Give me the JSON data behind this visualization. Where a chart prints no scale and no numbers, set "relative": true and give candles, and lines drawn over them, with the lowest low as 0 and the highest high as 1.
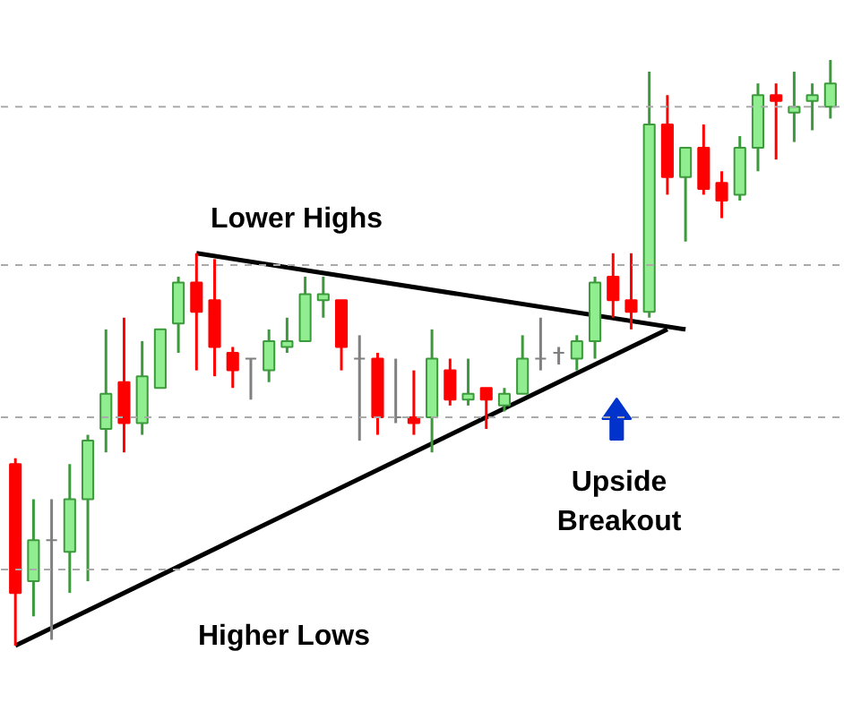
{
  "chart_data": {
    "type": "candlestick",
    "relative": true,
    "categories": [
      null,
      null,
      null,
      null,
      null,
      null,
      null,
      null,
      null,
      null,
      null,
      null,
      null,
      null,
      null,
      null,
      null,
      null,
      null,
      null,
      null,
      null,
      null,
      null,
      null,
      null,
      null,
      null,
      null,
      null,
      null,
      null,
      null,
      null,
      null,
      null,
      null,
      null,
      null,
      null,
      null,
      null,
      null,
      null,
      null,
      null
    ],
    "ohlc": [
      [
        0.31,
        0.32,
        0,
        0.09
      ],
      [
        0.11,
        0.25,
        0.05,
        0.18
      ],
      [
        0.18,
        0.25,
        0.01,
        0.18
      ],
      [
        0.16,
        0.31,
        0.09,
        0.25
      ],
      [
        0.25,
        0.36,
        0.11,
        0.35
      ],
      [
        0.37,
        0.54,
        0.33,
        0.43
      ],
      [
        0.45,
        0.56,
        0.33,
        0.38
      ],
      [
        0.38,
        0.52,
        0.36,
        0.46
      ],
      [
        0.44,
        0.54,
        0.44,
        0.54
      ],
      [
        0.55,
        0.63,
        0.5,
        0.62
      ],
      [
        0.62,
        0.67,
        0.47,
        0.57
      ],
      [
        0.59,
        0.66,
        0.46,
        0.51
      ],
      [
        0.5,
        0.51,
        0.44,
        0.47
      ],
      [
        0.49,
        0.49,
        0.42,
        0.49
      ],
      [
        0.47,
        0.54,
        0.45,
        0.52
      ],
      [
        0.51,
        0.56,
        0.5,
        0.52
      ],
      [
        0.52,
        0.63,
        0.52,
        0.6
      ],
      [
        0.59,
        0.63,
        0.56,
        0.6
      ],
      [
        0.59,
        0.59,
        0.47,
        0.51
      ],
      [
        0.49,
        0.53,
        0.35,
        0.49
      ],
      [
        0.49,
        0.5,
        0.36,
        0.39
      ],
      [
        0.39,
        0.49,
        0.38,
        0.39
      ],
      [
        0.39,
        0.47,
        0.36,
        0.38
      ],
      [
        0.39,
        0.54,
        0.33,
        0.49
      ],
      [
        0.47,
        0.49,
        0.41,
        0.42
      ],
      [
        0.42,
        0.49,
        0.41,
        0.43
      ],
      [
        0.44,
        0.44,
        0.37,
        0.42
      ],
      [
        0.41,
        0.44,
        0.4,
        0.43
      ],
      [
        0.43,
        0.53,
        0.43,
        0.49
      ],
      [
        0.49,
        0.56,
        0.47,
        0.49
      ],
      [
        0.5,
        0.51,
        0.48,
        0.5
      ],
      [
        0.49,
        0.53,
        0.47,
        0.52
      ],
      [
        0.52,
        0.63,
        0.49,
        0.62
      ],
      [
        0.63,
        0.67,
        0.56,
        0.59
      ],
      [
        0.59,
        0.67,
        0.54,
        0.57
      ],
      [
        0.57,
        0.98,
        0.56,
        0.89
      ],
      [
        0.89,
        0.94,
        0.77,
        0.8
      ],
      [
        0.8,
        0.85,
        0.69,
        0.85
      ],
      [
        0.85,
        0.89,
        0.77,
        0.78
      ],
      [
        0.79,
        0.81,
        0.73,
        0.76
      ],
      [
        0.77,
        0.87,
        0.76,
        0.85
      ],
      [
        0.85,
        0.96,
        0.81,
        0.94
      ],
      [
        0.94,
        0.96,
        0.83,
        0.93
      ],
      [
        0.91,
        0.98,
        0.86,
        0.92
      ],
      [
        0.93,
        0.96,
        0.88,
        0.94
      ],
      [
        0.92,
        1.0,
        0.9,
        0.96
      ]
    ],
    "colors": [
      "#ff0000",
      "#90ee90",
      "#808080",
      "#90ee90",
      "#90ee90",
      "#90ee90",
      "#ff0000",
      "#90ee90",
      "#90ee90",
      "#90ee90",
      "#ff0000",
      "#ff0000",
      "#ff0000",
      "#808080",
      "#90ee90",
      "#90ee90",
      "#90ee90",
      "#90ee90",
      "#ff0000",
      "#808080",
      "#ff0000",
      "#808080",
      "#ff0000",
      "#90ee90",
      "#ff0000",
      "#90ee90",
      "#ff0000",
      "#90ee90",
      "#90ee90",
      "#808080",
      "#808080",
      "#90ee90",
      "#90ee90",
      "#ff0000",
      "#ff0000",
      "#90ee90",
      "#ff0000",
      "#90ee90",
      "#ff0000",
      "#ff0000",
      "#90ee90",
      "#90ee90",
      "#ff0000",
      "#90ee90",
      "#90ee90",
      "#90ee90"
    ],
    "series": [
      {
        "type": "line",
        "color": "#000000",
        "values": [
          null,
          null,
          null,
          null,
          null,
          null,
          null,
          null,
          null,
          null,
          0.67,
          null,
          null,
          null,
          null,
          null,
          null,
          null,
          null,
          null,
          null,
          null,
          null,
          null,
          null,
          null,
          null,
          null,
          null,
          null,
          null,
          null,
          null,
          null,
          null,
          null,
          null,
          0.54,
          null,
          null,
          null,
          null,
          null,
          null,
          null,
          null
        ]
      },
      {
        "type": "line",
        "color": "#000000",
        "values": [
          0,
          null,
          null,
          null,
          null,
          null,
          null,
          null,
          null,
          null,
          null,
          null,
          null,
          null,
          null,
          null,
          null,
          null,
          null,
          null,
          null,
          null,
          null,
          null,
          null,
          null,
          null,
          null,
          null,
          null,
          null,
          null,
          null,
          null,
          null,
          null,
          0.54,
          null,
          null,
          null,
          null,
          null,
          null,
          null,
          null,
          null
        ]
      }
    ],
    "ref_lines": [
      {
        "axis": "y",
        "value": 0.92,
        "color": "#aaaaaa",
        "line_style": "dashed"
      },
      {
        "axis": "y",
        "value": 0.65,
        "color": "#aaaaaa",
        "line_style": "dashed"
      },
      {
        "axis": "y",
        "value": 0.39,
        "color": "#aaaaaa",
        "line_style": "dashed"
      },
      {
        "axis": "y",
        "value": 0.13,
        "color": "#aaaaaa",
        "line_style": "dashed"
      }
    ],
    "annotations": [
      "Lower Highs",
      "Higher Lows",
      "Upside Breakout"
    ]
  }
}
